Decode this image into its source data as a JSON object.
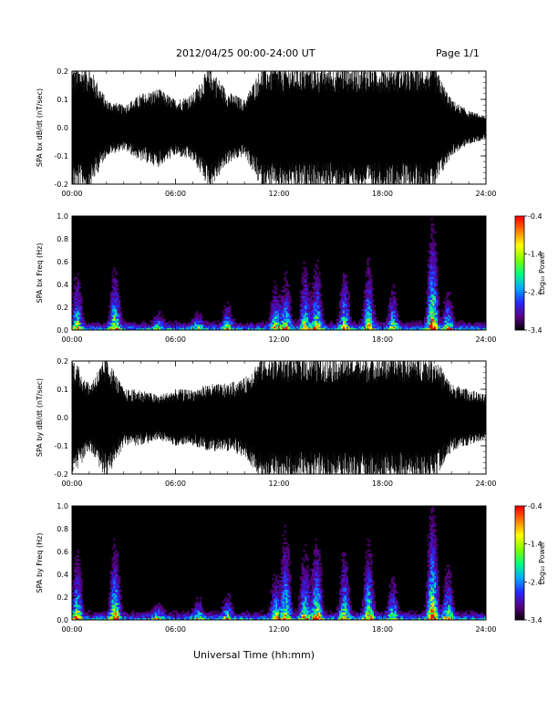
{
  "header": {
    "title": "2012/04/25  00:00-24:00 UT",
    "page": "Page 1/1"
  },
  "footer": {
    "xlabel": "Universal Time (hh:mm)"
  },
  "colors": {
    "background": "#ffffff",
    "plot_background": "#000000",
    "trace": "#000000",
    "colormap": [
      "#000000",
      "#5a0082",
      "#2828ff",
      "#00aaff",
      "#00ff7f",
      "#7fff00",
      "#ffff00",
      "#ff7f00",
      "#ff0000"
    ]
  },
  "chart_data": [
    {
      "type": "line",
      "ylabel": "SPA bx dB/dt (nT/sec)",
      "xlim": [
        0,
        24
      ],
      "ylim": [
        -0.2,
        0.2
      ],
      "x_ticks": [
        "00:00",
        "06:00",
        "12:00",
        "18:00",
        "24:00"
      ],
      "y_ticks": [
        "-0.2",
        "-0.1",
        "0.0",
        "0.1",
        "0.2"
      ],
      "envelope_hours": [
        0,
        1,
        2,
        3,
        4,
        5,
        6,
        7,
        8,
        9,
        10,
        11,
        12,
        13,
        14,
        15,
        16,
        17,
        18,
        19,
        20,
        21,
        22,
        23,
        24
      ],
      "envelope_amplitude": [
        0.22,
        0.22,
        0.1,
        0.08,
        0.12,
        0.14,
        0.1,
        0.12,
        0.22,
        0.13,
        0.1,
        0.22,
        0.22,
        0.22,
        0.22,
        0.22,
        0.22,
        0.22,
        0.22,
        0.22,
        0.22,
        0.22,
        0.1,
        0.06,
        0.04
      ]
    },
    {
      "type": "heatmap",
      "ylabel": "SPA bx Freq (Hz)",
      "xlim": [
        0,
        24
      ],
      "ylim": [
        0,
        1.0
      ],
      "x_ticks": [
        "00:00",
        "06:00",
        "12:00",
        "18:00",
        "24:00"
      ],
      "y_ticks": [
        "0.0",
        "0.2",
        "0.4",
        "0.6",
        "0.8",
        "1.0"
      ],
      "colorbar": {
        "label": "Log₁₀ Power",
        "ticks": [
          "-0.4",
          "-1.4",
          "-2.4",
          "-3.4"
        ],
        "range": [
          -3.4,
          -0.4
        ]
      },
      "bursts": [
        {
          "t": 0.3,
          "f": 0.55,
          "p": 0.6
        },
        {
          "t": 2.5,
          "f": 0.55,
          "p": 0.7
        },
        {
          "t": 5.0,
          "f": 0.2,
          "p": 0.4
        },
        {
          "t": 7.3,
          "f": 0.2,
          "p": 0.4
        },
        {
          "t": 9.0,
          "f": 0.3,
          "p": 0.45
        },
        {
          "t": 11.8,
          "f": 0.45,
          "p": 0.55
        },
        {
          "t": 12.4,
          "f": 0.55,
          "p": 0.55
        },
        {
          "t": 13.5,
          "f": 0.65,
          "p": 0.55
        },
        {
          "t": 14.2,
          "f": 0.65,
          "p": 0.6
        },
        {
          "t": 15.8,
          "f": 0.6,
          "p": 0.55
        },
        {
          "t": 17.2,
          "f": 0.65,
          "p": 0.6
        },
        {
          "t": 18.6,
          "f": 0.45,
          "p": 0.5
        },
        {
          "t": 20.9,
          "f": 0.9,
          "p": 0.85
        },
        {
          "t": 21.8,
          "f": 0.4,
          "p": 0.55
        }
      ]
    },
    {
      "type": "line",
      "ylabel": "SPA by dB/dt (nT/sec)",
      "xlim": [
        0,
        24
      ],
      "ylim": [
        -0.2,
        0.2
      ],
      "x_ticks": [
        "00:00",
        "06:00",
        "12:00",
        "18:00",
        "24:00"
      ],
      "y_ticks": [
        "-0.2",
        "-0.1",
        "0.0",
        "0.1",
        "0.2"
      ],
      "envelope_hours": [
        0,
        1,
        2,
        3,
        4,
        5,
        6,
        7,
        8,
        9,
        10,
        11,
        12,
        13,
        14,
        15,
        16,
        17,
        18,
        19,
        20,
        21,
        22,
        23,
        24
      ],
      "envelope_amplitude": [
        0.22,
        0.12,
        0.22,
        0.1,
        0.1,
        0.08,
        0.1,
        0.1,
        0.12,
        0.12,
        0.14,
        0.22,
        0.22,
        0.22,
        0.22,
        0.22,
        0.22,
        0.22,
        0.22,
        0.22,
        0.22,
        0.22,
        0.12,
        0.1,
        0.08
      ]
    },
    {
      "type": "heatmap",
      "ylabel": "SPA by Freq (Hz)",
      "xlim": [
        0,
        24
      ],
      "ylim": [
        0,
        1.0
      ],
      "x_ticks": [
        "00:00",
        "06:00",
        "12:00",
        "18:00",
        "24:00"
      ],
      "y_ticks": [
        "0.0",
        "0.2",
        "0.4",
        "0.6",
        "0.8",
        "1.0"
      ],
      "colorbar": {
        "label": "Log₁₀ Power",
        "ticks": [
          "-0.4",
          "-1.4",
          "-2.4",
          "-3.4"
        ],
        "range": [
          -3.4,
          -0.4
        ]
      },
      "bursts": [
        {
          "t": 0.3,
          "f": 0.6,
          "p": 0.65
        },
        {
          "t": 2.5,
          "f": 0.65,
          "p": 0.75
        },
        {
          "t": 5.0,
          "f": 0.2,
          "p": 0.4
        },
        {
          "t": 7.3,
          "f": 0.25,
          "p": 0.45
        },
        {
          "t": 9.0,
          "f": 0.3,
          "p": 0.45
        },
        {
          "t": 11.8,
          "f": 0.45,
          "p": 0.55
        },
        {
          "t": 12.4,
          "f": 0.85,
          "p": 0.6
        },
        {
          "t": 13.5,
          "f": 0.7,
          "p": 0.55
        },
        {
          "t": 14.2,
          "f": 0.75,
          "p": 0.65
        },
        {
          "t": 15.8,
          "f": 0.7,
          "p": 0.55
        },
        {
          "t": 17.2,
          "f": 0.75,
          "p": 0.6
        },
        {
          "t": 18.6,
          "f": 0.45,
          "p": 0.5
        },
        {
          "t": 20.9,
          "f": 0.95,
          "p": 0.85
        },
        {
          "t": 21.8,
          "f": 0.5,
          "p": 0.6
        }
      ]
    }
  ]
}
